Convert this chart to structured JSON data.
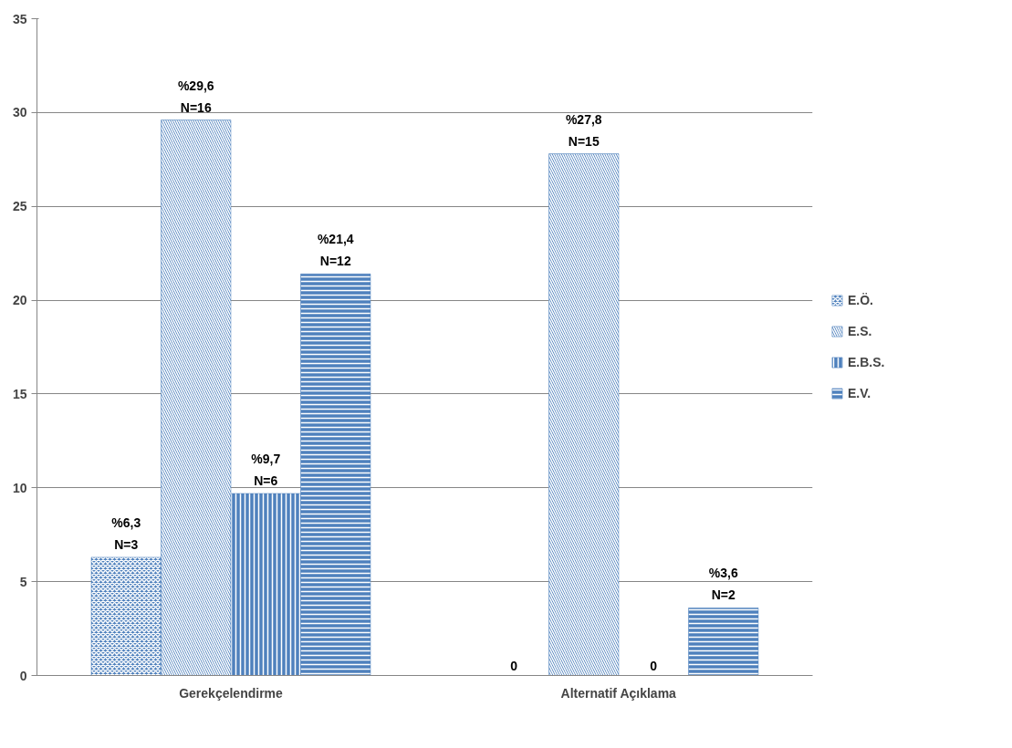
{
  "chart_data": {
    "type": "bar",
    "categories": [
      "Gerekçelendirme",
      "Alternatif Açıklama"
    ],
    "series": [
      {
        "name": "E.Ö.",
        "color": "#4f81bd",
        "values": [
          6.3,
          0
        ],
        "value_labels": [
          "%6,3\nN=3",
          "0"
        ]
      },
      {
        "name": "E.S.",
        "color": "#4f81bd",
        "values": [
          29.6,
          27.8
        ],
        "value_labels": [
          "%29,6\nN=16",
          "%27,8\nN=15"
        ]
      },
      {
        "name": "E.B.S.",
        "color": "#4f81bd",
        "values": [
          9.7,
          0
        ],
        "value_labels": [
          "%9,7\nN=6",
          "0"
        ]
      },
      {
        "name": "E.V.",
        "color": "#4f81bd",
        "values": [
          21.4,
          3.6
        ],
        "value_labels": [
          "%21,4\nN=12",
          "%3,6\nN=2"
        ]
      }
    ],
    "ylim": [
      0,
      35
    ],
    "yticks": [
      0,
      5,
      10,
      15,
      20,
      25,
      30,
      35
    ],
    "grid": "y",
    "legend": "right"
  }
}
